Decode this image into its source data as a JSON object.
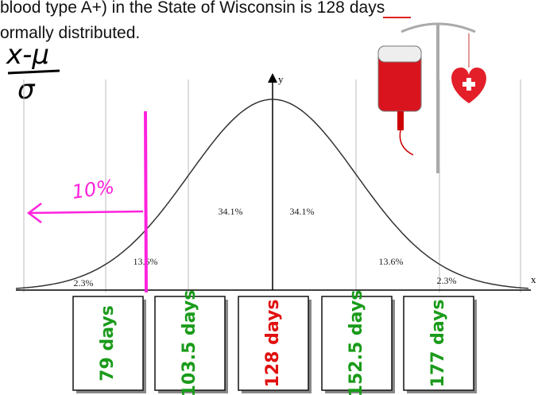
{
  "header": {
    "line1": [
      "blood type A+) in the State of Wisconsin is",
      "128",
      "days"
    ],
    "line2": "ormally distributed."
  },
  "formula": {
    "numerator": "x-μ",
    "denominator": "σ"
  },
  "axes": {
    "y": "y",
    "x": "x"
  },
  "regions": [
    "2.3%",
    "13.6%",
    "34.1%",
    "34.1%",
    "13.6%",
    "2.3%"
  ],
  "annotation": "10%",
  "boxes": [
    "79 days",
    "103.5 days",
    "128 days",
    "152.5 days",
    "177 days"
  ]
}
